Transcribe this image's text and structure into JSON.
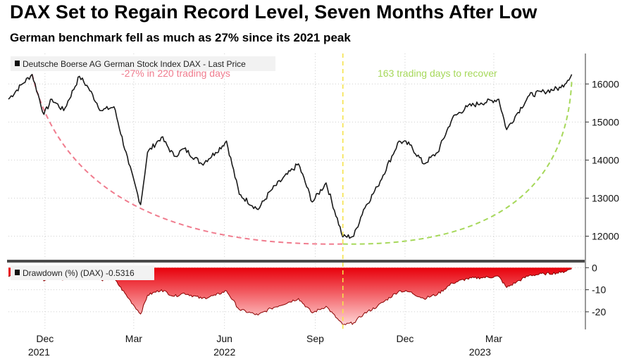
{
  "title": "DAX Set to Regain Record Level, Seven Months After Low",
  "subtitle": "German benchmark fell as much as 27% since its 2021 peak",
  "colors": {
    "price_line": "#1a1a1a",
    "decline_arc": "#f07c8e",
    "recovery_arc": "#a6d85a",
    "low_marker": "#f5e34a",
    "drawdown_top": "#e8000b",
    "drawdown_bottom": "#ffd6d6",
    "grid": "#cfcfcf"
  },
  "chart_data": [
    {
      "type": "line",
      "legend": "Deutsche Boerse AG German Stock Index DAX - Last Price",
      "legend_position": "top-left",
      "ylim": [
        11400,
        16800
      ],
      "yticks": [
        12000,
        13000,
        14000,
        15000,
        16000
      ],
      "grid": true,
      "annotations": [
        {
          "text": "-27% in 220 trading days"
        },
        {
          "text": "163 trading days to recover"
        }
      ],
      "series": [
        {
          "x": [
            "2021-10-25",
            "2021-11-08",
            "2021-11-18",
            "2021-11-30",
            "2021-12-08",
            "2021-12-20",
            "2022-01-05",
            "2022-01-14",
            "2022-01-27",
            "2022-02-09",
            "2022-02-24",
            "2022-03-08",
            "2022-03-15",
            "2022-03-29",
            "2022-04-11",
            "2022-04-21",
            "2022-05-09",
            "2022-05-23",
            "2022-06-03",
            "2022-06-16",
            "2022-07-05",
            "2022-07-18",
            "2022-08-15",
            "2022-08-29",
            "2022-09-12",
            "2022-09-29",
            "2022-10-10",
            "2022-10-20",
            "2022-11-03",
            "2022-11-25",
            "2022-12-06",
            "2022-12-20",
            "2023-01-03",
            "2023-01-18",
            "2023-02-02",
            "2023-02-16",
            "2023-03-06",
            "2023-03-14",
            "2023-03-24",
            "2023-04-06",
            "2023-04-21",
            "2023-05-08",
            "2023-05-19"
          ],
          "y": [
            15600,
            16000,
            16250,
            15200,
            15600,
            15300,
            16200,
            15900,
            15300,
            15400,
            13900,
            12830,
            14200,
            14600,
            14100,
            14300,
            13900,
            14200,
            14500,
            13100,
            12700,
            13200,
            13900,
            12900,
            13400,
            11980,
            12000,
            12700,
            13300,
            14500,
            14400,
            13900,
            14200,
            15100,
            15400,
            15500,
            15600,
            14800,
            15200,
            15700,
            15800,
            15900,
            16250
          ]
        }
      ]
    },
    {
      "type": "area",
      "legend": "Drawdown (%) (DAX) -0.5316",
      "legend_position": "top-left",
      "ylim": [
        -28,
        2
      ],
      "yticks": [
        0,
        -10,
        -20
      ],
      "grid": true,
      "series": [
        {
          "x": [
            "2021-10-25",
            "2021-11-08",
            "2021-11-18",
            "2021-11-30",
            "2021-12-08",
            "2021-12-20",
            "2022-01-05",
            "2022-01-14",
            "2022-01-27",
            "2022-02-09",
            "2022-02-24",
            "2022-03-08",
            "2022-03-15",
            "2022-03-29",
            "2022-04-11",
            "2022-04-21",
            "2022-05-09",
            "2022-05-23",
            "2022-06-03",
            "2022-06-16",
            "2022-07-05",
            "2022-07-18",
            "2022-08-15",
            "2022-08-29",
            "2022-09-12",
            "2022-09-29",
            "2022-10-10",
            "2022-10-20",
            "2022-11-03",
            "2022-11-25",
            "2022-12-06",
            "2022-12-20",
            "2023-01-03",
            "2023-01-18",
            "2023-02-02",
            "2023-02-16",
            "2023-03-06",
            "2023-03-14",
            "2023-03-24",
            "2023-04-06",
            "2023-04-21",
            "2023-05-08",
            "2023-05-19"
          ],
          "y": [
            -4,
            -1.5,
            -1,
            -6,
            -3.5,
            -5.5,
            0,
            -2,
            -5.5,
            -5,
            -14,
            -21,
            -12.5,
            -10,
            -13,
            -11.5,
            -14,
            -12.5,
            -10.5,
            -19,
            -21.5,
            -18.5,
            -14,
            -20.5,
            -17.5,
            -26,
            -25,
            -21,
            -17.5,
            -10.5,
            -11,
            -14,
            -12,
            -7,
            -5,
            -4.5,
            -4,
            -9,
            -6.5,
            -3.5,
            -2.8,
            -2.2,
            -0.5
          ]
        }
      ]
    }
  ],
  "x_axis": {
    "month_ticks": [
      {
        "label": "Dec",
        "date": "2021-12-01"
      },
      {
        "label": "Mar",
        "date": "2022-03-01"
      },
      {
        "label": "Jun",
        "date": "2022-06-01"
      },
      {
        "label": "Sep",
        "date": "2022-09-01"
      },
      {
        "label": "Dec",
        "date": "2022-12-01"
      },
      {
        "label": "Mar",
        "date": "2023-03-01"
      }
    ],
    "year_labels": [
      {
        "label": "2021",
        "date": "2021-11-25"
      },
      {
        "label": "2022",
        "date": "2022-06-01"
      },
      {
        "label": "2023",
        "date": "2023-02-15"
      }
    ],
    "range": [
      "2021-10-25",
      "2023-05-25"
    ]
  },
  "low_date": "2022-09-29"
}
